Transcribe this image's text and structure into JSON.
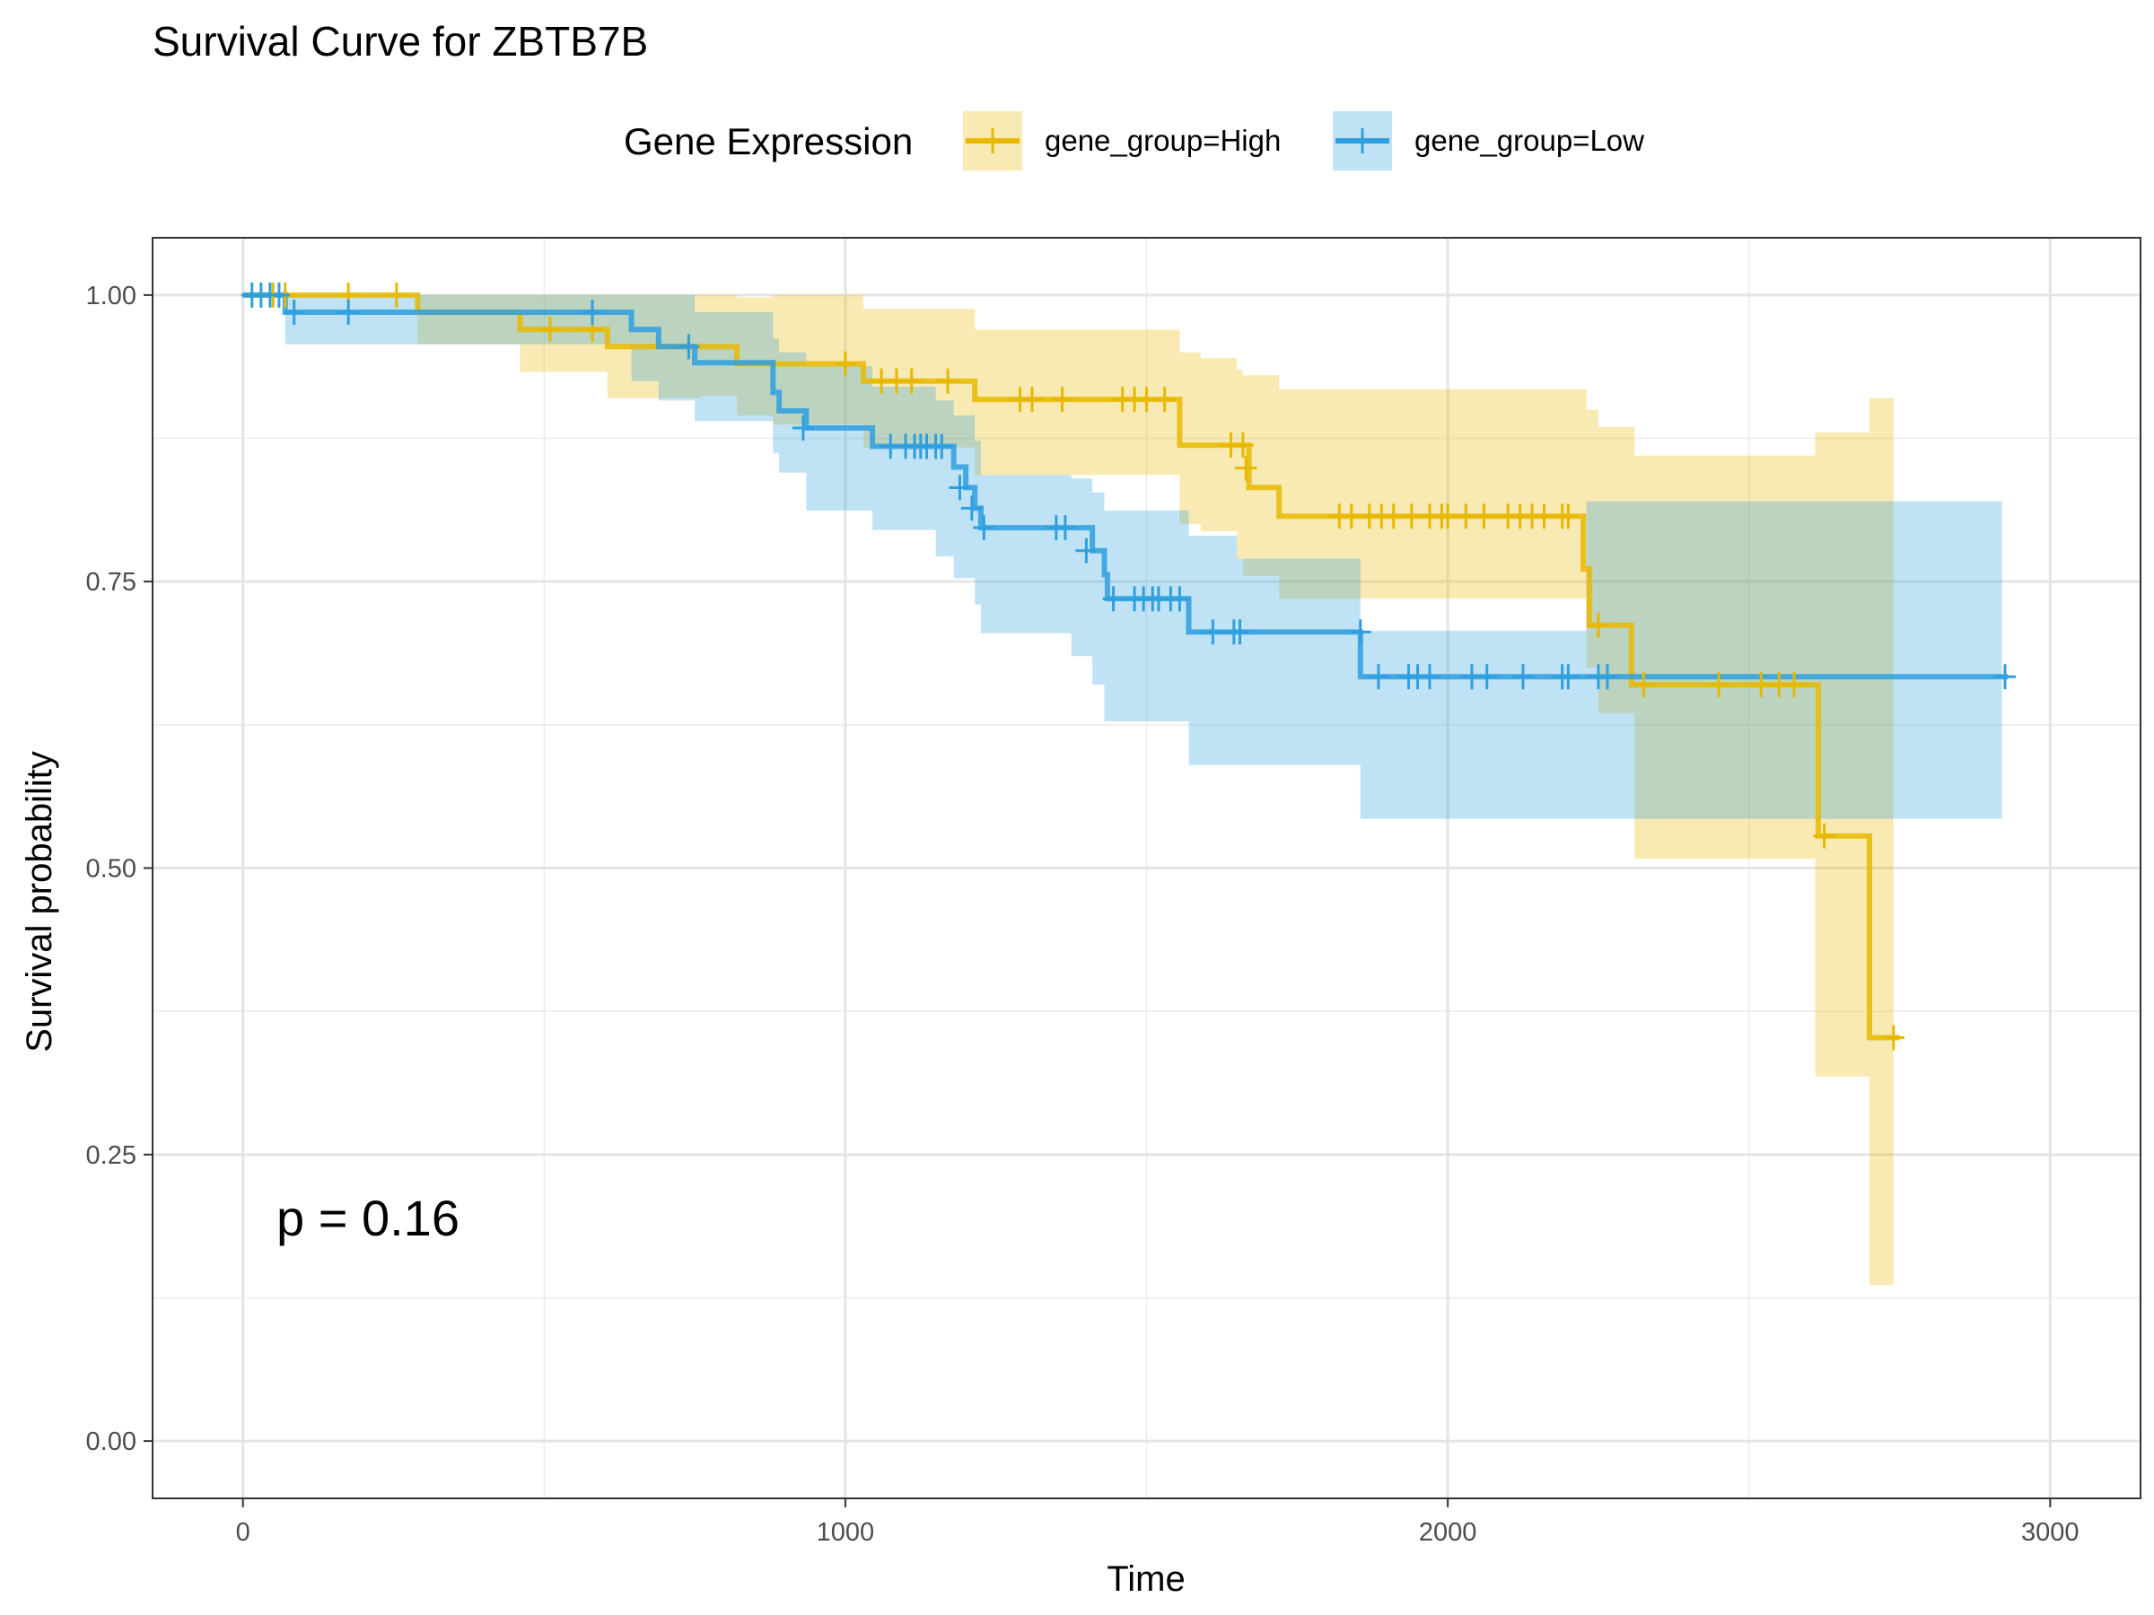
{
  "chart_data": {
    "type": "line",
    "title": "Survival Curve for ZBTB7B",
    "xlabel": "Time",
    "ylabel": "Survival probability",
    "xlim": [
      -150,
      3150
    ],
    "ylim": [
      -0.05,
      1.05
    ],
    "xticks": [
      0,
      1000,
      2000,
      3000
    ],
    "xtick_labels": [
      "0",
      "1000",
      "2000",
      "3000"
    ],
    "yticks": [
      0,
      0.25,
      0.5,
      0.75,
      1
    ],
    "ytick_labels": [
      "0.00",
      "0.25",
      "0.50",
      "0.75",
      "1.00"
    ],
    "grid": true,
    "legend": {
      "title": "Gene Expression",
      "position": "top"
    },
    "annotation": "p = 0.16",
    "series": [
      {
        "name": "gene_group=High",
        "color": "#E7B800",
        "steps": [
          [
            0,
            1.0
          ],
          [
            290,
            0.985
          ],
          [
            460,
            0.97
          ],
          [
            605,
            0.955
          ],
          [
            820,
            0.94
          ],
          [
            1030,
            0.925
          ],
          [
            1215,
            0.909
          ],
          [
            1555,
            0.869
          ],
          [
            1670,
            0.832
          ],
          [
            1720,
            0.807
          ],
          [
            2225,
            0.761
          ],
          [
            2235,
            0.712
          ],
          [
            2305,
            0.66
          ],
          [
            2615,
            0.528
          ],
          [
            2700,
            0.352
          ]
        ],
        "end": 2750,
        "ci_steps": [
          [
            0,
            1.0,
            1.0
          ],
          [
            290,
            1.0,
            0.957
          ],
          [
            460,
            1.0,
            0.933
          ],
          [
            605,
            1.0,
            0.91
          ],
          [
            760,
            1.0,
            0.912
          ],
          [
            820,
            0.998,
            0.895
          ],
          [
            880,
            1.0,
            0.887
          ],
          [
            1030,
            0.988,
            0.867
          ],
          [
            1215,
            0.97,
            0.843
          ],
          [
            1555,
            0.95,
            0.8
          ],
          [
            1590,
            0.945,
            0.794
          ],
          [
            1650,
            0.935,
            0.77
          ],
          [
            1660,
            0.93,
            0.755
          ],
          [
            1720,
            0.918,
            0.735
          ],
          [
            2230,
            0.9,
            0.675
          ],
          [
            2250,
            0.885,
            0.635
          ],
          [
            2310,
            0.86,
            0.508
          ],
          [
            2610,
            0.88,
            0.318
          ],
          [
            2700,
            0.91,
            0.136
          ]
        ],
        "ci_end": 2740,
        "censors": [
          [
            50,
            1.0
          ],
          [
            70,
            1.0
          ],
          [
            175,
            1.0
          ],
          [
            255,
            1.0
          ],
          [
            510,
            0.97
          ],
          [
            580,
            0.97
          ],
          [
            740,
            0.955
          ],
          [
            1000,
            0.94
          ],
          [
            1060,
            0.925
          ],
          [
            1085,
            0.925
          ],
          [
            1110,
            0.925
          ],
          [
            1170,
            0.925
          ],
          [
            1290,
            0.909
          ],
          [
            1310,
            0.909
          ],
          [
            1360,
            0.909
          ],
          [
            1460,
            0.909
          ],
          [
            1480,
            0.909
          ],
          [
            1500,
            0.909
          ],
          [
            1530,
            0.909
          ],
          [
            1640,
            0.869
          ],
          [
            1660,
            0.869
          ],
          [
            1665,
            0.849
          ],
          [
            1820,
            0.807
          ],
          [
            1840,
            0.807
          ],
          [
            1870,
            0.807
          ],
          [
            1890,
            0.807
          ],
          [
            1910,
            0.807
          ],
          [
            1940,
            0.807
          ],
          [
            1970,
            0.807
          ],
          [
            1990,
            0.807
          ],
          [
            2000,
            0.807
          ],
          [
            2030,
            0.807
          ],
          [
            2060,
            0.807
          ],
          [
            2100,
            0.807
          ],
          [
            2120,
            0.807
          ],
          [
            2140,
            0.807
          ],
          [
            2160,
            0.807
          ],
          [
            2190,
            0.807
          ],
          [
            2200,
            0.807
          ],
          [
            2250,
            0.712
          ],
          [
            2325,
            0.66
          ],
          [
            2450,
            0.66
          ],
          [
            2520,
            0.66
          ],
          [
            2550,
            0.66
          ],
          [
            2575,
            0.66
          ],
          [
            2625,
            0.528
          ],
          [
            2740,
            0.352
          ]
        ]
      },
      {
        "name": "gene_group=Low",
        "color": "#2E9FDF",
        "steps": [
          [
            0,
            1.0
          ],
          [
            70,
            0.985
          ],
          [
            645,
            0.97
          ],
          [
            690,
            0.955
          ],
          [
            750,
            0.941
          ],
          [
            880,
            0.915
          ],
          [
            890,
            0.899
          ],
          [
            935,
            0.884
          ],
          [
            1045,
            0.868
          ],
          [
            1180,
            0.85
          ],
          [
            1200,
            0.832
          ],
          [
            1215,
            0.814
          ],
          [
            1225,
            0.797
          ],
          [
            1410,
            0.777
          ],
          [
            1430,
            0.756
          ],
          [
            1435,
            0.735
          ],
          [
            1570,
            0.706
          ],
          [
            1855,
            0.667
          ]
        ],
        "end": 2930,
        "ci_steps": [
          [
            0,
            1.0,
            1.0
          ],
          [
            70,
            1.0,
            0.957
          ],
          [
            290,
            1.0,
            0.957
          ],
          [
            645,
            1.0,
            0.925
          ],
          [
            690,
            1.0,
            0.908
          ],
          [
            750,
            0.985,
            0.89
          ],
          [
            880,
            0.962,
            0.862
          ],
          [
            890,
            0.95,
            0.845
          ],
          [
            935,
            0.938,
            0.812
          ],
          [
            1045,
            0.92,
            0.795
          ],
          [
            1150,
            0.908,
            0.772
          ],
          [
            1180,
            0.895,
            0.753
          ],
          [
            1215,
            0.873,
            0.73
          ],
          [
            1225,
            0.843,
            0.705
          ],
          [
            1375,
            0.84,
            0.685
          ],
          [
            1410,
            0.828,
            0.66
          ],
          [
            1430,
            0.812,
            0.628
          ],
          [
            1570,
            0.79,
            0.59
          ],
          [
            1650,
            0.77,
            0.59
          ],
          [
            1855,
            0.707,
            0.543
          ],
          [
            2230,
            0.82,
            0.543
          ]
        ],
        "ci_end": 2920,
        "censors": [
          [
            15,
            1.0
          ],
          [
            30,
            1.0
          ],
          [
            45,
            1.0
          ],
          [
            60,
            1.0
          ],
          [
            85,
            0.985
          ],
          [
            175,
            0.985
          ],
          [
            580,
            0.985
          ],
          [
            740,
            0.955
          ],
          [
            930,
            0.884
          ],
          [
            1075,
            0.868
          ],
          [
            1100,
            0.868
          ],
          [
            1115,
            0.868
          ],
          [
            1125,
            0.868
          ],
          [
            1135,
            0.868
          ],
          [
            1150,
            0.868
          ],
          [
            1160,
            0.868
          ],
          [
            1190,
            0.832
          ],
          [
            1210,
            0.814
          ],
          [
            1230,
            0.797
          ],
          [
            1350,
            0.797
          ],
          [
            1365,
            0.797
          ],
          [
            1400,
            0.777
          ],
          [
            1445,
            0.735
          ],
          [
            1480,
            0.735
          ],
          [
            1495,
            0.735
          ],
          [
            1510,
            0.735
          ],
          [
            1520,
            0.735
          ],
          [
            1540,
            0.735
          ],
          [
            1555,
            0.735
          ],
          [
            1610,
            0.706
          ],
          [
            1645,
            0.706
          ],
          [
            1655,
            0.706
          ],
          [
            1855,
            0.706
          ],
          [
            1885,
            0.667
          ],
          [
            1935,
            0.667
          ],
          [
            1950,
            0.667
          ],
          [
            1970,
            0.667
          ],
          [
            2040,
            0.667
          ],
          [
            2065,
            0.667
          ],
          [
            2125,
            0.667
          ],
          [
            2190,
            0.667
          ],
          [
            2200,
            0.667
          ],
          [
            2250,
            0.667
          ],
          [
            2265,
            0.667
          ],
          [
            2925,
            0.667
          ]
        ]
      }
    ]
  }
}
